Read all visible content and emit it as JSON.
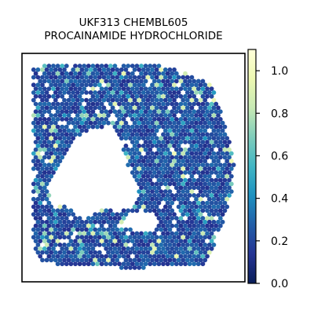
{
  "chart_data": {
    "type": "heatmap",
    "subtype": "spatial-transcriptomics-spot-plot",
    "title_lines": [
      "UKF313 CHEMBL605",
      "PROCAINAMIDE HYDROCHLORIDE"
    ],
    "xlabel": "",
    "ylabel": "",
    "axis_ticks_visible": false,
    "grid": false,
    "colormap": {
      "name": "YlGnBu",
      "stops": [
        "#081d58",
        "#253494",
        "#225ea8",
        "#1d91c0",
        "#41b6c4",
        "#7fcdbb",
        "#c7e9b4",
        "#edf8b1",
        "#ffffd9"
      ]
    },
    "colorbar": {
      "range": [
        0.0,
        1.1
      ],
      "ticks": [
        0.0,
        0.2,
        0.4,
        0.6,
        0.8,
        1.0
      ],
      "tick_labels": [
        "0.0",
        "0.2",
        "0.4",
        "0.6",
        "0.8",
        "1.0"
      ],
      "placement": "right"
    },
    "value_distribution": {
      "typical_range": [
        0.1,
        0.35
      ],
      "outlier_range": [
        0.4,
        1.0
      ]
    }
  }
}
